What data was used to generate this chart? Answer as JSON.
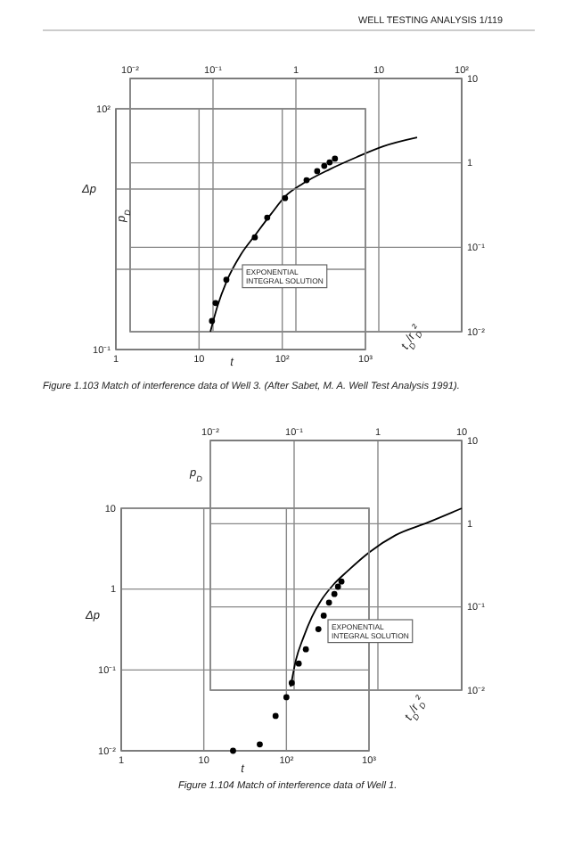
{
  "chart_data": [
    {
      "type": "scatter",
      "xlabel": "t",
      "ylabel": "Δp",
      "log": "xy",
      "grid": true,
      "marker": "circle",
      "color": "#000000",
      "xlim": [
        1,
        1000
      ],
      "xticks": [
        {
          "value": 1,
          "label": "1"
        },
        {
          "value": 10,
          "label": "10"
        },
        {
          "value": 100,
          "label": "10²"
        },
        {
          "value": 1000,
          "label": "10³"
        }
      ],
      "ylim": [
        0.1,
        100
      ],
      "yticks": [
        {
          "value": 0.1,
          "label": "10⁻¹"
        },
        {
          "value": 1,
          "label": null
        },
        {
          "value": 10,
          "label": null
        },
        {
          "value": 100,
          "label": "10²"
        }
      ],
      "x": [
        14.3,
        15.8,
        21.3,
        46.8,
        66,
        108,
        196,
        263,
        320,
        371,
        430
      ],
      "values": [
        0.227,
        0.38,
        0.74,
        2.5,
        4.4,
        7.7,
        12.9,
        16.7,
        19.4,
        21.5,
        23.9
      ],
      "annotations": [
        "WELL TESTING ANALYSIS   1/119",
        "EXPONENTIAL INTEGRAL SOLUTION",
        "Figure 1.103  Match of interference data of Well 3. (After Sabet, M. A. Well Test Analysis 1991)."
      ]
    },
    {
      "type": "line",
      "xlabel": "t$_{D}$/r$_{D}$²",
      "ylabel": "p$_{D}$",
      "log": "xy",
      "grid": true,
      "color": "#000000",
      "xlim": [
        0.01,
        100
      ],
      "xticks": [
        {
          "value": 0.01,
          "label": "10⁻²"
        },
        {
          "value": 0.1,
          "label": "10⁻¹"
        },
        {
          "value": 1,
          "label": "1"
        },
        {
          "value": 10,
          "label": "10"
        },
        {
          "value": 100,
          "label": "10²"
        }
      ],
      "ylim": [
        0.01,
        10
      ],
      "yticks": [
        {
          "value": 0.01,
          "label": "10⁻²"
        },
        {
          "value": 0.1,
          "label": "10⁻¹"
        },
        {
          "value": 1,
          "label": "1"
        },
        {
          "value": 10,
          "label": "10"
        }
      ],
      "x": [
        0.093,
        0.113,
        0.145,
        0.215,
        0.32,
        0.5,
        0.74,
        1.22,
        2.56,
        5.4,
        11.3,
        29
      ],
      "values": [
        0.01,
        0.02,
        0.039,
        0.081,
        0.138,
        0.247,
        0.4,
        0.57,
        0.84,
        1.17,
        1.57,
        2.0
      ]
    },
    {
      "type": "scatter",
      "xlabel": "t",
      "ylabel": "Δp",
      "log": "xy",
      "grid": true,
      "marker": "circle",
      "color": "#000000",
      "xlim": [
        1,
        1000
      ],
      "xticks": [
        {
          "value": 1,
          "label": "1"
        },
        {
          "value": 10,
          "label": "10"
        },
        {
          "value": 100,
          "label": "10²"
        },
        {
          "value": 1000,
          "label": "10³"
        }
      ],
      "ylim": [
        0.01,
        10
      ],
      "yticks": [
        {
          "value": 0.01,
          "label": "10⁻²"
        },
        {
          "value": 0.1,
          "label": "10⁻¹"
        },
        {
          "value": 1,
          "label": "1"
        },
        {
          "value": 10,
          "label": "10"
        }
      ],
      "x": [
        22.6,
        47.6,
        74,
        100,
        116,
        141,
        172,
        244,
        283,
        328,
        381,
        421,
        464
      ],
      "values": [
        0.01,
        0.012,
        0.027,
        0.046,
        0.069,
        0.12,
        0.18,
        0.32,
        0.47,
        0.68,
        0.87,
        1.07,
        1.24
      ],
      "annotations": [
        "EXPONENTIAL INTEGRAL SOLUTION",
        "Figure 1.104  Match of interference data of Well 1."
      ]
    },
    {
      "type": "line",
      "xlabel": "t$_{D}$/r$_{D}$²",
      "ylabel": "p$_{D}$",
      "log": "xy",
      "grid": true,
      "color": "#000000",
      "xlim": [
        0.01,
        10
      ],
      "xticks": [
        {
          "value": 0.01,
          "label": "10⁻²"
        },
        {
          "value": 0.1,
          "label": "10⁻¹"
        },
        {
          "value": 1,
          "label": "1"
        },
        {
          "value": 10,
          "label": "10"
        }
      ],
      "ylim": [
        0.01,
        10
      ],
      "yticks": [
        {
          "value": 0.01,
          "label": "10⁻²"
        },
        {
          "value": 0.1,
          "label": "10⁻¹"
        },
        {
          "value": 1,
          "label": "1"
        },
        {
          "value": 10,
          "label": "10"
        }
      ],
      "x": [
        0.091,
        0.105,
        0.128,
        0.163,
        0.208,
        0.294,
        0.435,
        0.78,
        1.63,
        3.9,
        10
      ],
      "values": [
        0.011,
        0.023,
        0.042,
        0.076,
        0.118,
        0.185,
        0.27,
        0.45,
        0.73,
        1.03,
        1.53
      ]
    }
  ]
}
